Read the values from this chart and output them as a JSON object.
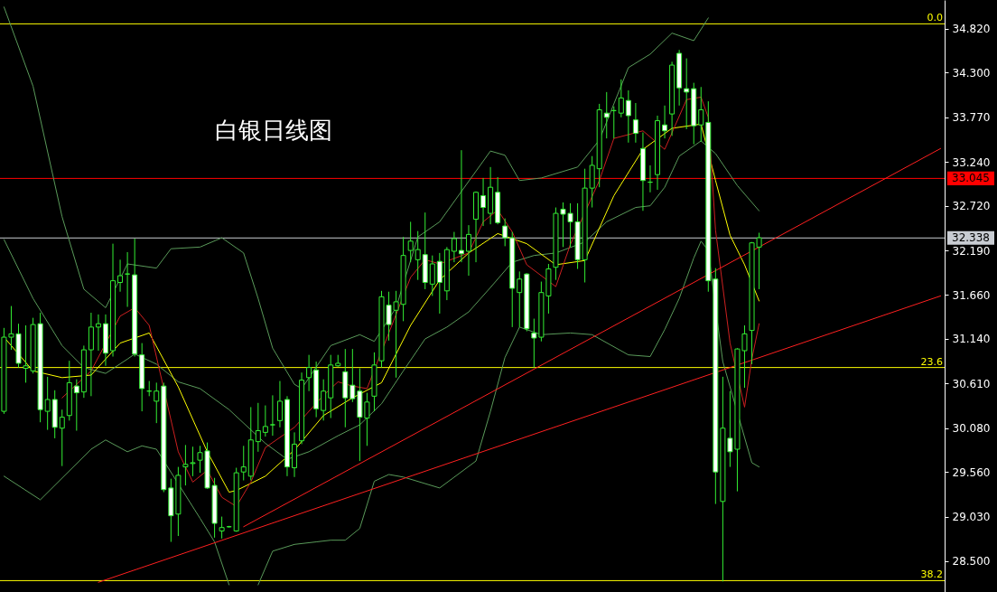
{
  "chart_data": {
    "type": "candlestick",
    "title": "白银日线图",
    "categories": [
      null,
      null,
      null,
      null,
      null,
      null,
      null,
      null,
      null,
      null,
      null,
      null,
      null,
      null,
      null,
      null,
      null,
      null,
      null,
      null,
      null,
      null,
      null,
      null,
      null,
      null,
      null,
      null,
      null,
      null,
      null,
      null,
      null,
      null,
      null,
      null,
      null,
      null,
      null,
      null,
      null,
      null,
      null,
      null,
      null,
      null,
      null,
      null,
      null,
      null,
      null,
      null,
      null,
      null,
      null,
      null,
      null,
      null,
      null,
      null,
      null,
      null,
      null,
      null,
      null,
      null,
      null,
      null,
      null,
      null,
      null,
      null,
      null,
      null,
      null,
      null,
      null,
      null,
      null,
      null,
      null,
      null,
      null,
      null,
      null,
      null,
      null,
      null,
      null,
      null,
      null,
      null,
      null,
      null,
      null,
      null,
      null,
      null,
      null,
      null,
      null,
      null,
      null,
      null,
      null,
      null,
      null,
      null,
      null,
      null,
      null,
      null,
      null,
      null,
      null,
      null,
      null,
      null,
      null,
      null,
      null,
      null,
      null,
      null,
      null,
      null,
      null,
      null,
      null,
      null
    ],
    "ylim": [
      28.135,
      35.163
    ],
    "yticks": [
      {
        "value": 28.5,
        "label": "28.500"
      },
      {
        "value": 29.03,
        "label": "29.030"
      },
      {
        "value": 29.56,
        "label": "29.560"
      },
      {
        "value": 30.08,
        "label": "30.080"
      },
      {
        "value": 30.61,
        "label": "30.610"
      },
      {
        "value": 31.14,
        "label": "31.140"
      },
      {
        "value": 31.66,
        "label": "31.660"
      },
      {
        "value": 32.19,
        "label": "32.190"
      },
      {
        "value": 32.72,
        "label": "32.720"
      },
      {
        "value": 33.24,
        "label": "33.240"
      },
      {
        "value": 33.77,
        "label": "33.770"
      },
      {
        "value": 34.3,
        "label": "34.300"
      },
      {
        "value": 34.82,
        "label": "34.820"
      }
    ],
    "tick_labels": "y",
    "annotations": [
      {
        "text": "0.0",
        "y": 34.88
      },
      {
        "text": "23.6",
        "y": 30.8
      },
      {
        "text": "38.2",
        "y": 28.27
      }
    ],
    "ref_lines": [
      {
        "axis": "y",
        "value": 34.88,
        "color": "#ffff00"
      },
      {
        "axis": "y",
        "value": 30.8,
        "color": "#ffff00"
      },
      {
        "axis": "y",
        "value": 28.27,
        "color": "#ffff00"
      },
      {
        "axis": "y",
        "value": 33.045,
        "label": "33.045",
        "color": "#ff0000"
      },
      {
        "axis": "y",
        "value": 32.338,
        "label": "32.338",
        "color": "#c8ccd2"
      }
    ],
    "series": [
      {
        "type": "line",
        "color": "#5a9a5a",
        "values": [
          35.08,
          null,
          null,
          null,
          34.14,
          null,
          null,
          null,
          32.59,
          null,
          null,
          31.73,
          null,
          null,
          31.51,
          null,
          null,
          32.03,
          null,
          null,
          null,
          31.98,
          null,
          32.21,
          null,
          null,
          null,
          32.23,
          null,
          null,
          32.34,
          null,
          null,
          32.16,
          null,
          31.62,
          null,
          31.03,
          null,
          null,
          30.6,
          30.55,
          null,
          null,
          null,
          31.06,
          null,
          null,
          null,
          31.19,
          null,
          31.11,
          null,
          null,
          31.51,
          null,
          null,
          32.35,
          null,
          null,
          32.53,
          null,
          null,
          32.89,
          null,
          null,
          null,
          33.37,
          null,
          33.32,
          null,
          33.02,
          null,
          null,
          33.05,
          null,
          null,
          null,
          null,
          33.18,
          null,
          null,
          33.5,
          null,
          null,
          null,
          34.36,
          null,
          null,
          34.52,
          null,
          null,
          34.77,
          null,
          null,
          34.68,
          null,
          34.95,
          null,
          null,
          null,
          null,
          null,
          null,
          null,
          null,
          null,
          null,
          null,
          null,
          null,
          null,
          null,
          null,
          null,
          null,
          null,
          null,
          null,
          null,
          null,
          null,
          null,
          null,
          null,
          null,
          null,
          null,
          null,
          null
        ]
      },
      {
        "type": "line",
        "color": "#5a9a5a",
        "values": [
          32.32,
          null,
          null,
          null,
          31.62,
          null,
          null,
          null,
          31.06,
          null,
          null,
          30.8,
          null,
          null,
          30.73,
          null,
          null,
          30.9,
          30.96,
          null,
          null,
          30.84,
          null,
          null,
          30.63,
          null,
          null,
          30.55,
          null,
          null,
          null,
          30.3,
          null,
          null,
          null,
          29.98,
          29.9,
          null,
          null,
          29.71,
          null,
          null,
          29.8,
          null,
          null,
          null,
          29.99,
          null,
          null,
          30.12,
          null,
          null,
          30.37,
          null,
          null,
          30.76,
          null,
          null,
          31.14,
          null,
          null,
          31.28,
          null,
          null,
          31.46,
          null,
          null,
          31.75,
          null,
          null,
          32.05,
          null,
          null,
          32.13,
          null,
          null,
          32.16,
          null,
          null,
          null,
          32.29,
          null,
          null,
          32.53,
          null,
          null,
          null,
          32.7,
          null,
          32.72,
          null,
          32.94,
          null,
          33.31,
          null,
          null,
          33.49,
          null,
          33.34,
          null,
          null,
          32.96,
          null,
          null,
          32.66,
          null,
          null,
          null,
          null,
          null,
          null,
          null,
          null,
          null,
          null,
          null,
          null,
          null,
          null,
          null,
          null,
          null,
          null,
          null,
          null,
          null,
          null,
          null,
          null,
          null
        ]
      },
      {
        "type": "line",
        "color": "#5a9a5a",
        "values": [
          29.51,
          null,
          null,
          null,
          null,
          29.23,
          null,
          null,
          null,
          null,
          null,
          null,
          29.83,
          null,
          29.94,
          null,
          null,
          29.8,
          null,
          29.87,
          null,
          29.83,
          null,
          null,
          29.42,
          null,
          null,
          29.01,
          null,
          28.73,
          null,
          28.22,
          null,
          null,
          null,
          null,
          null,
          null,
          null,
          null,
          null,
          null,
          null,
          null,
          null,
          null,
          null,
          null,
          null,
          null,
          null,
          null,
          null,
          null,
          null,
          null,
          null,
          null,
          null,
          null,
          null,
          null,
          null,
          null,
          null,
          null,
          null,
          null,
          null,
          null,
          null,
          null,
          null,
          null,
          null,
          null,
          null,
          null,
          null,
          null,
          null,
          null,
          null,
          null,
          null,
          null,
          null,
          null,
          null,
          null,
          null,
          null,
          null,
          null,
          null,
          null,
          null,
          null,
          null,
          null,
          null,
          null,
          null,
          null,
          null,
          null,
          null,
          null,
          null,
          null,
          null,
          null,
          null,
          null,
          null,
          null,
          null,
          null,
          null,
          null,
          null,
          null,
          null,
          null,
          null,
          null,
          null,
          null,
          null,
          null
        ]
      },
      {
        "type": "line",
        "color": "#5a9a5a",
        "values": [
          null,
          null,
          null,
          null,
          null,
          null,
          null,
          null,
          null,
          null,
          null,
          null,
          null,
          null,
          null,
          null,
          null,
          null,
          null,
          null,
          null,
          null,
          null,
          null,
          null,
          null,
          null,
          null,
          null,
          null,
          null,
          null,
          null,
          null,
          null,
          28.22,
          null,
          28.62,
          null,
          null,
          28.7,
          null,
          null,
          28.73,
          null,
          28.75,
          null,
          28.75,
          null,
          28.89,
          null,
          29.45,
          null,
          29.53,
          null,
          29.5,
          null,
          null,
          null,
          null,
          29.37,
          null,
          null,
          null,
          null,
          29.69,
          null,
          30.28,
          null,
          30.92,
          null,
          31.28,
          null,
          null,
          31.19,
          null,
          null,
          null,
          31.21,
          null,
          null,
          31.19,
          null,
          null,
          null,
          null,
          30.95,
          null,
          null,
          30.93,
          null,
          31.25,
          null,
          31.62,
          null,
          32.1,
          32.3,
          32.19,
          31.51,
          30.87,
          null,
          null,
          null,
          29.67,
          29.62,
          null,
          null,
          null,
          null,
          null,
          null,
          null,
          null,
          null,
          null,
          null,
          null,
          null,
          null,
          null,
          null,
          null,
          null,
          null,
          null,
          null,
          null,
          null,
          null,
          null
        ]
      },
      {
        "type": "line",
        "color": "#ffff00",
        "values": [
          31.16,
          null,
          null,
          null,
          30.76,
          null,
          null,
          null,
          30.68,
          null,
          null,
          null,
          30.71,
          null,
          null,
          null,
          31.09,
          null,
          null,
          null,
          31.21,
          null,
          null,
          null,
          30.57,
          null,
          null,
          null,
          29.8,
          null,
          null,
          29.32,
          29.34,
          null,
          null,
          null,
          29.51,
          null,
          null,
          null,
          29.82,
          null,
          null,
          null,
          30.23,
          null,
          null,
          null,
          30.44,
          null,
          null,
          null,
          30.62,
          null,
          null,
          null,
          31.3,
          null,
          null,
          null,
          31.84,
          null,
          null,
          null,
          32.16,
          null,
          null,
          null,
          32.39,
          null,
          null,
          null,
          32.27,
          null,
          null,
          null,
          32.02,
          null,
          null,
          null,
          32.07,
          null,
          null,
          null,
          32.84,
          null,
          null,
          null,
          33.39,
          null,
          null,
          null,
          33.64,
          null,
          null,
          null,
          33.69,
          null,
          33.02,
          null,
          32.37,
          null,
          32.02,
          null,
          31.59,
          null,
          null,
          null,
          null,
          null,
          null,
          null,
          null,
          null,
          null,
          null,
          null,
          null,
          null,
          null,
          null,
          null,
          null,
          null,
          null,
          null,
          null,
          null,
          null,
          null
        ]
      },
      {
        "type": "line",
        "color": "#cc2020",
        "values": [
          null,
          null,
          null,
          null,
          null,
          null,
          null,
          null,
          30.44,
          null,
          null,
          null,
          30.76,
          null,
          null,
          null,
          31.41,
          null,
          31.51,
          null,
          31.3,
          null,
          null,
          null,
          29.8,
          null,
          29.44,
          null,
          29.58,
          null,
          29.26,
          null,
          29.15,
          null,
          29.44,
          null,
          29.85,
          null,
          null,
          null,
          30.09,
          null,
          null,
          null,
          30.47,
          null,
          30.63,
          null,
          30.58,
          null,
          30.55,
          null,
          null,
          null,
          null,
          null,
          31.87,
          null,
          32.08,
          null,
          32.03,
          null,
          null,
          null,
          32.16,
          null,
          32.53,
          null,
          32.67,
          null,
          32.41,
          null,
          32.02,
          null,
          null,
          null,
          31.76,
          null,
          32.26,
          null,
          null,
          null,
          33.02,
          null,
          33.52,
          null,
          null,
          null,
          33.61,
          null,
          null,
          33.39,
          null,
          null,
          33.98,
          null,
          34.01,
          33.77,
          32.43,
          null,
          31.09,
          null,
          30.33,
          30.9,
          31.32,
          null,
          null,
          null,
          null,
          null,
          null,
          null,
          null,
          null,
          null,
          null,
          null,
          null,
          null,
          null,
          null,
          null,
          null,
          null,
          null,
          null,
          null,
          null,
          null,
          null
        ]
      },
      {
        "type": "line",
        "color": "#ff2020",
        "values": [
          null,
          null,
          null,
          null,
          null,
          null,
          null,
          null,
          null,
          null,
          null,
          null,
          null,
          28.25,
          null,
          null,
          null,
          null,
          null,
          null,
          null,
          null,
          null,
          null,
          null,
          null,
          null,
          null,
          null,
          null,
          null,
          null,
          null,
          null,
          null,
          null,
          null,
          null,
          null,
          null,
          null,
          null,
          null,
          null,
          null,
          null,
          null,
          null,
          null,
          null,
          null,
          null,
          null,
          null,
          null,
          null,
          null,
          null,
          null,
          null,
          null,
          null,
          null,
          null,
          null,
          null,
          null,
          null,
          null,
          null,
          null,
          null,
          null,
          null,
          null,
          null,
          null,
          null,
          null,
          null,
          null,
          null,
          null,
          null,
          null,
          null,
          null,
          null,
          null,
          null,
          null,
          null,
          null,
          null,
          null,
          null,
          null,
          null,
          null,
          null,
          null,
          null,
          null,
          null,
          null,
          null,
          null,
          null,
          null,
          null,
          null,
          null,
          null,
          null,
          null,
          null,
          null,
          null,
          null,
          null,
          null,
          null,
          null,
          null,
          null,
          null,
          null,
          null,
          null,
          31.65
        ]
      },
      {
        "type": "line",
        "color": "#ff2020",
        "values": [
          null,
          null,
          null,
          null,
          null,
          null,
          null,
          null,
          null,
          null,
          null,
          null,
          null,
          null,
          null,
          null,
          null,
          null,
          null,
          null,
          null,
          null,
          null,
          null,
          null,
          null,
          null,
          null,
          null,
          null,
          null,
          null,
          null,
          28.91,
          null,
          null,
          null,
          null,
          null,
          null,
          null,
          null,
          null,
          null,
          null,
          null,
          null,
          null,
          null,
          null,
          null,
          null,
          null,
          null,
          null,
          null,
          null,
          null,
          null,
          null,
          null,
          null,
          null,
          null,
          null,
          null,
          null,
          null,
          null,
          null,
          null,
          null,
          null,
          null,
          null,
          null,
          null,
          null,
          null,
          null,
          null,
          null,
          null,
          null,
          null,
          null,
          null,
          null,
          null,
          null,
          null,
          null,
          null,
          null,
          null,
          null,
          null,
          null,
          null,
          null,
          null,
          null,
          null,
          null,
          null,
          null,
          null,
          null,
          null,
          null,
          null,
          null,
          null,
          null,
          null,
          null,
          null,
          null,
          null,
          null,
          null,
          null,
          null,
          null,
          null,
          null,
          null,
          null,
          null,
          33.4
        ]
      },
      {
        "type": "candlestick",
        "color": "#33ee33",
        "ohlc": [
          [
            30.28,
            31.27,
            30.25,
            31.16
          ],
          [
            31.16,
            31.53,
            31.01,
            31.2
          ],
          [
            31.2,
            31.32,
            30.8,
            30.85
          ],
          [
            30.79,
            31.3,
            30.62,
            30.82
          ],
          [
            30.76,
            31.39,
            30.73,
            31.31
          ],
          [
            31.32,
            31.45,
            30.15,
            30.3
          ],
          [
            30.28,
            30.69,
            30.06,
            30.42
          ],
          [
            30.42,
            30.53,
            29.96,
            30.09
          ],
          [
            30.08,
            30.3,
            29.63,
            30.21
          ],
          [
            30.23,
            30.88,
            30.17,
            30.62
          ],
          [
            30.58,
            30.66,
            30.05,
            30.5
          ],
          [
            30.51,
            31.06,
            30.44,
            31.01
          ],
          [
            31.01,
            31.45,
            30.46,
            31.28
          ],
          [
            31.28,
            31.43,
            31.0,
            31.32
          ],
          [
            31.32,
            31.43,
            30.82,
            30.97
          ],
          [
            31.0,
            32.27,
            30.93,
            31.83
          ],
          [
            31.81,
            32.08,
            31.7,
            31.89
          ],
          [
            31.91,
            32.17,
            31.52,
            31.91
          ],
          [
            31.9,
            32.33,
            30.93,
            30.96
          ],
          [
            30.95,
            31.09,
            30.28,
            30.55
          ],
          [
            30.52,
            30.64,
            30.46,
            30.52
          ],
          [
            30.4,
            30.62,
            30.14,
            30.52
          ],
          [
            30.58,
            30.62,
            29.32,
            29.35
          ],
          [
            29.37,
            29.48,
            28.73,
            29.04
          ],
          [
            29.06,
            29.62,
            28.8,
            29.52
          ],
          [
            29.62,
            29.88,
            29.4,
            29.65
          ],
          [
            29.66,
            29.86,
            29.51,
            29.67
          ],
          [
            29.7,
            29.87,
            29.55,
            29.79
          ],
          [
            29.81,
            29.91,
            29.36,
            29.37
          ],
          [
            29.4,
            29.49,
            28.78,
            28.95
          ],
          [
            28.86,
            29.03,
            28.77,
            28.9
          ],
          [
            28.91,
            28.92,
            28.9,
            28.91
          ],
          [
            28.86,
            29.61,
            28.85,
            29.55
          ],
          [
            29.56,
            29.87,
            29.46,
            29.62
          ],
          [
            29.51,
            30.33,
            29.46,
            29.94
          ],
          [
            29.92,
            30.38,
            29.8,
            30.05
          ],
          [
            30.03,
            30.35,
            29.98,
            30.1
          ],
          [
            30.12,
            30.47,
            29.99,
            30.12
          ],
          [
            30.17,
            30.64,
            30.09,
            30.4
          ],
          [
            30.42,
            30.46,
            29.51,
            29.62
          ],
          [
            29.61,
            30.03,
            29.5,
            29.89
          ],
          [
            29.93,
            30.74,
            29.89,
            30.65
          ],
          [
            30.68,
            30.95,
            30.52,
            30.8
          ],
          [
            30.77,
            30.87,
            30.21,
            30.31
          ],
          [
            30.29,
            30.66,
            30.17,
            30.52
          ],
          [
            30.44,
            30.95,
            30.2,
            30.83
          ],
          [
            30.82,
            30.95,
            30.81,
            30.85
          ],
          [
            30.75,
            31.02,
            30.09,
            30.44
          ],
          [
            30.59,
            31.02,
            30.39,
            30.43
          ],
          [
            30.52,
            30.79,
            29.69,
            30.21
          ],
          [
            30.2,
            30.5,
            29.87,
            30.39
          ],
          [
            30.46,
            30.98,
            30.28,
            30.83
          ],
          [
            30.88,
            31.71,
            30.8,
            31.64
          ],
          [
            31.54,
            31.7,
            31.12,
            31.31
          ],
          [
            31.48,
            31.71,
            30.68,
            31.58
          ],
          [
            31.55,
            32.35,
            31.35,
            32.13
          ],
          [
            32.19,
            32.53,
            32.05,
            32.3
          ],
          [
            32.08,
            32.42,
            31.84,
            32.2
          ],
          [
            32.14,
            32.64,
            31.73,
            31.81
          ],
          [
            31.79,
            32.13,
            31.65,
            32.03
          ],
          [
            32.06,
            32.16,
            31.44,
            31.81
          ],
          [
            31.71,
            32.23,
            31.6,
            32.2
          ],
          [
            32.18,
            32.41,
            32.05,
            32.33
          ],
          [
            32.19,
            33.38,
            32.05,
            32.15
          ],
          [
            32.18,
            32.49,
            31.89,
            32.38
          ],
          [
            32.56,
            32.89,
            32.05,
            32.88
          ],
          [
            32.84,
            33.05,
            32.48,
            32.7
          ],
          [
            32.63,
            33.18,
            32.5,
            32.94
          ],
          [
            32.88,
            33.06,
            32.5,
            32.52
          ],
          [
            32.48,
            32.57,
            32.24,
            32.34
          ],
          [
            32.34,
            32.41,
            31.28,
            31.74
          ],
          [
            31.69,
            31.94,
            31.28,
            31.85
          ],
          [
            31.91,
            31.92,
            31.23,
            31.26
          ],
          [
            31.21,
            31.38,
            30.8,
            31.15
          ],
          [
            31.16,
            31.82,
            31.11,
            31.69
          ],
          [
            31.65,
            32.03,
            31.44,
            31.97
          ],
          [
            31.99,
            32.7,
            31.84,
            32.63
          ],
          [
            32.68,
            32.76,
            32.23,
            32.62
          ],
          [
            32.63,
            32.75,
            32.23,
            32.53
          ],
          [
            32.53,
            32.75,
            31.97,
            32.08
          ],
          [
            32.08,
            33.16,
            31.81,
            32.93
          ],
          [
            32.93,
            33.31,
            32.7,
            33.2
          ],
          [
            33.16,
            33.93,
            32.94,
            33.86
          ],
          [
            33.82,
            34.07,
            33.52,
            33.77
          ],
          [
            33.85,
            33.9,
            33.52,
            33.85
          ],
          [
            33.82,
            34.22,
            33.77,
            34.0
          ],
          [
            33.97,
            34.09,
            33.47,
            33.79
          ],
          [
            33.74,
            33.94,
            33.47,
            33.58
          ],
          [
            33.4,
            33.59,
            32.66,
            33.02
          ],
          [
            33.0,
            33.2,
            32.88,
            33.0
          ],
          [
            33.09,
            33.79,
            32.91,
            33.73
          ],
          [
            33.68,
            33.91,
            33.52,
            33.61
          ],
          [
            33.81,
            34.43,
            33.55,
            34.39
          ],
          [
            34.53,
            34.57,
            33.91,
            34.12
          ],
          [
            34.11,
            34.47,
            33.63,
            34.07
          ],
          [
            34.11,
            34.18,
            33.45,
            33.67
          ],
          [
            33.68,
            34.13,
            33.48,
            33.86
          ],
          [
            33.71,
            33.96,
            31.7,
            31.83
          ],
          [
            31.85,
            31.98,
            29.18,
            29.56
          ],
          [
            29.21,
            30.69,
            28.26,
            30.08
          ],
          [
            29.96,
            30.52,
            29.62,
            29.8
          ],
          [
            29.83,
            31.03,
            29.33,
            31.02
          ],
          [
            31.0,
            31.3,
            30.56,
            31.2
          ],
          [
            31.24,
            32.29,
            30.84,
            32.28
          ],
          [
            32.23,
            32.4,
            31.73,
            32.34
          ],
          null,
          null,
          null,
          null,
          null,
          null,
          null,
          null,
          null,
          null,
          null,
          null,
          null,
          null,
          null,
          null,
          null,
          null,
          null,
          null,
          null,
          null,
          null,
          null,
          null
        ]
      }
    ]
  }
}
